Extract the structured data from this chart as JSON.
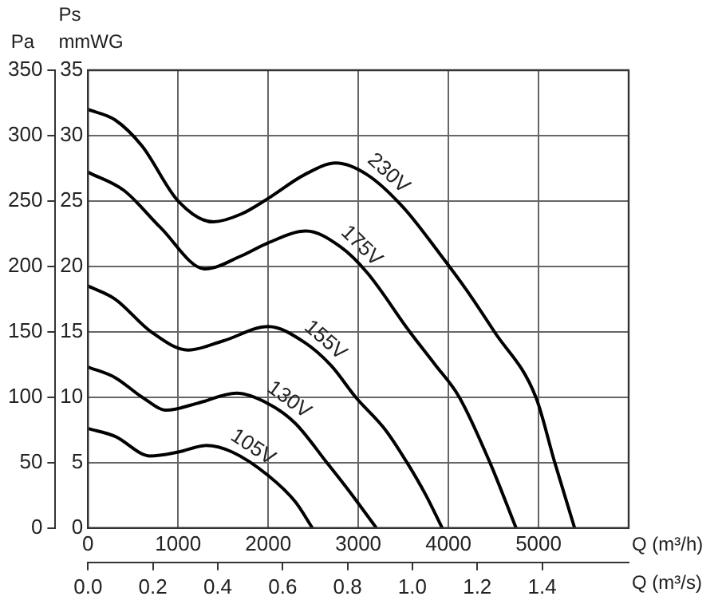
{
  "chart_data": {
    "type": "line",
    "xlabel": "Q (m³/h)",
    "x2label": "Q (m³/s)",
    "ylabel": "Pa",
    "y2label": "mmWG",
    "annotations": [
      "Ps"
    ],
    "xlim": [
      0,
      6000
    ],
    "xticks": [
      0,
      1000,
      2000,
      3000,
      4000,
      5000
    ],
    "x2lim": [
      0,
      1.6667
    ],
    "x2ticks": [
      {
        "value": 0,
        "label": "0.0"
      },
      {
        "value": 0.2,
        "label": "0.2"
      },
      {
        "value": 0.4,
        "label": "0.4"
      },
      {
        "value": 0.6,
        "label": "0.6"
      },
      {
        "value": 0.8,
        "label": "0.8"
      },
      {
        "value": 1,
        "label": "1.0"
      },
      {
        "value": 1.2,
        "label": "1.2"
      },
      {
        "value": 1.4,
        "label": "1.4"
      }
    ],
    "ylim": [
      0,
      350
    ],
    "yticks": [
      0,
      50,
      100,
      150,
      200,
      250,
      300,
      350
    ],
    "y2lim": [
      0,
      35
    ],
    "y2ticks": [
      0,
      5,
      10,
      15,
      20,
      25,
      30,
      35
    ],
    "grid": true,
    "legend": false,
    "marker": "none",
    "line_style": "solid",
    "series": [
      {
        "name": "230V",
        "color": "#000000",
        "x": [
          0,
          300,
          600,
          1000,
          1390,
          1700,
          2000,
          2400,
          2750,
          3100,
          3500,
          3900,
          4200,
          4510,
          4970,
          5180,
          5400
        ],
        "values": [
          320,
          312,
          292,
          250,
          234,
          240,
          252,
          270,
          279,
          270,
          245,
          210,
          182,
          150,
          100,
          50,
          0
        ]
      },
      {
        "name": "175V",
        "color": "#000000",
        "x": [
          0,
          400,
          800,
          1300,
          1700,
          2000,
          2420,
          2800,
          3100,
          3570,
          3850,
          4120,
          4460,
          4750
        ],
        "values": [
          272,
          258,
          230,
          198,
          208,
          218,
          227,
          215,
          195,
          150,
          125,
          100,
          50,
          0
        ]
      },
      {
        "name": "155V",
        "color": "#000000",
        "x": [
          0,
          300,
          700,
          1110,
          1500,
          2000,
          2400,
          2700,
          2970,
          3300,
          3540,
          3750,
          3930
        ],
        "values": [
          185,
          175,
          150,
          136,
          143,
          154,
          142,
          124,
          100,
          75,
          50,
          25,
          0
        ]
      },
      {
        "name": "130V",
        "color": "#000000",
        "x": [
          0,
          300,
          600,
          875,
          1200,
          1650,
          2000,
          2300,
          2650,
          2900,
          3200
        ],
        "values": [
          123,
          115,
          100,
          90,
          95,
          103,
          95,
          80,
          50,
          28,
          0
        ]
      },
      {
        "name": "105V",
        "color": "#000000",
        "x": [
          0,
          300,
          690,
          1000,
          1310,
          1600,
          2000,
          2300,
          2490
        ],
        "values": [
          76,
          70,
          55,
          58,
          63,
          58,
          40,
          20,
          0
        ]
      }
    ]
  }
}
